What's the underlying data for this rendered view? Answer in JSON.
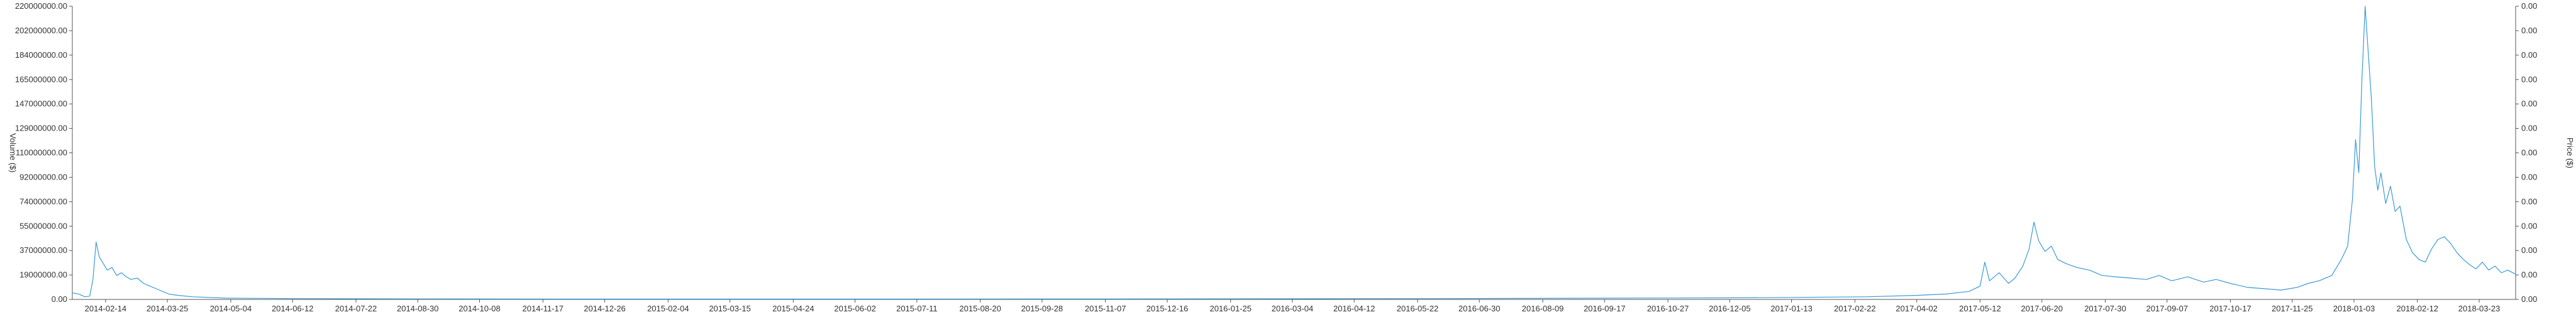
{
  "chart_data": {
    "type": "line",
    "title": "",
    "xlabel": "",
    "ylabel_left": "Volume ($)",
    "ylabel_right": "Price ($)",
    "x_ticks": [
      "2014-02-14",
      "2014-03-25",
      "2014-05-04",
      "2014-06-12",
      "2014-07-22",
      "2014-08-30",
      "2014-10-08",
      "2014-11-17",
      "2014-12-26",
      "2015-02-04",
      "2015-03-15",
      "2015-04-24",
      "2015-06-02",
      "2015-07-11",
      "2015-08-20",
      "2015-09-28",
      "2015-11-07",
      "2015-12-16",
      "2016-01-25",
      "2016-03-04",
      "2016-04-12",
      "2016-05-22",
      "2016-06-30",
      "2016-08-09",
      "2016-09-17",
      "2016-10-27",
      "2016-12-05",
      "2017-01-13",
      "2017-02-22",
      "2017-04-02",
      "2017-05-12",
      "2017-06-20",
      "2017-07-30",
      "2017-09-07",
      "2017-10-17",
      "2017-11-25",
      "2018-01-03",
      "2018-02-12",
      "2018-03-23"
    ],
    "x_range": [
      "2014-01-24",
      "2018-04-15"
    ],
    "y_left_ticks": [
      "0.00",
      "19000000.00",
      "37000000.00",
      "55000000.00",
      "74000000.00",
      "92000000.00",
      "110000000.00",
      "129000000.00",
      "147000000.00",
      "165000000.00",
      "184000000.00",
      "202000000.00",
      "220000000.00"
    ],
    "y_left_range": [
      0,
      220000000
    ],
    "y_right_ticks": [
      "0.00",
      "0.00",
      "0.00",
      "0.00",
      "0.00",
      "0.00",
      "0.00",
      "0.00",
      "0.00",
      "0.00",
      "0.00",
      "0.00",
      "0.00"
    ],
    "grid": false,
    "legend": "none",
    "series_color": "#3a9ad9",
    "series": [
      {
        "points": [
          [
            "2014-01-24",
            5000000
          ],
          [
            "2014-01-28",
            4000000
          ],
          [
            "2014-02-01",
            2000000
          ],
          [
            "2014-02-04",
            2500000
          ],
          [
            "2014-02-06",
            15000000
          ],
          [
            "2014-02-08",
            43000000
          ],
          [
            "2014-02-10",
            32000000
          ],
          [
            "2014-02-12",
            28000000
          ],
          [
            "2014-02-15",
            22000000
          ],
          [
            "2014-02-18",
            24000000
          ],
          [
            "2014-02-21",
            18000000
          ],
          [
            "2014-02-24",
            20000000
          ],
          [
            "2014-02-27",
            17000000
          ],
          [
            "2014-03-02",
            15000000
          ],
          [
            "2014-03-06",
            16000000
          ],
          [
            "2014-03-10",
            12000000
          ],
          [
            "2014-03-14",
            10000000
          ],
          [
            "2014-03-18",
            8000000
          ],
          [
            "2014-03-22",
            6000000
          ],
          [
            "2014-03-26",
            4000000
          ],
          [
            "2014-04-01",
            3000000
          ],
          [
            "2014-04-10",
            2000000
          ],
          [
            "2014-05-01",
            1000000
          ],
          [
            "2014-06-15",
            600000
          ],
          [
            "2014-09-01",
            400000
          ],
          [
            "2015-01-01",
            300000
          ],
          [
            "2015-06-01",
            300000
          ],
          [
            "2015-12-01",
            400000
          ],
          [
            "2016-06-01",
            600000
          ],
          [
            "2016-12-01",
            1200000
          ],
          [
            "2017-01-15",
            1500000
          ],
          [
            "2017-03-01",
            2000000
          ],
          [
            "2017-04-01",
            3000000
          ],
          [
            "2017-04-20",
            4000000
          ],
          [
            "2017-05-05",
            6000000
          ],
          [
            "2017-05-12",
            10000000
          ],
          [
            "2017-05-15",
            28000000
          ],
          [
            "2017-05-18",
            14000000
          ],
          [
            "2017-05-24",
            20000000
          ],
          [
            "2017-05-30",
            12000000
          ],
          [
            "2017-06-03",
            16000000
          ],
          [
            "2017-06-08",
            25000000
          ],
          [
            "2017-06-12",
            38000000
          ],
          [
            "2017-06-15",
            58000000
          ],
          [
            "2017-06-18",
            44000000
          ],
          [
            "2017-06-22",
            36000000
          ],
          [
            "2017-06-26",
            40000000
          ],
          [
            "2017-06-30",
            30000000
          ],
          [
            "2017-07-05",
            27000000
          ],
          [
            "2017-07-12",
            24000000
          ],
          [
            "2017-07-20",
            22000000
          ],
          [
            "2017-07-28",
            18000000
          ],
          [
            "2017-08-05",
            17000000
          ],
          [
            "2017-08-15",
            16000000
          ],
          [
            "2017-08-25",
            15000000
          ],
          [
            "2017-09-02",
            18000000
          ],
          [
            "2017-09-10",
            14000000
          ],
          [
            "2017-09-20",
            17000000
          ],
          [
            "2017-09-30",
            13000000
          ],
          [
            "2017-10-08",
            15000000
          ],
          [
            "2017-10-17",
            12000000
          ],
          [
            "2017-10-28",
            9000000
          ],
          [
            "2017-11-08",
            8000000
          ],
          [
            "2017-11-18",
            7000000
          ],
          [
            "2017-11-28",
            9000000
          ],
          [
            "2017-12-05",
            12000000
          ],
          [
            "2017-12-12",
            14000000
          ],
          [
            "2017-12-20",
            18000000
          ],
          [
            "2017-12-26",
            30000000
          ],
          [
            "2017-12-30",
            40000000
          ],
          [
            "2018-01-02",
            75000000
          ],
          [
            "2018-01-04",
            120000000
          ],
          [
            "2018-01-06",
            95000000
          ],
          [
            "2018-01-08",
            165000000
          ],
          [
            "2018-01-10",
            220000000
          ],
          [
            "2018-01-12",
            185000000
          ],
          [
            "2018-01-14",
            150000000
          ],
          [
            "2018-01-16",
            100000000
          ],
          [
            "2018-01-18",
            82000000
          ],
          [
            "2018-01-20",
            95000000
          ],
          [
            "2018-01-23",
            72000000
          ],
          [
            "2018-01-26",
            85000000
          ],
          [
            "2018-01-29",
            66000000
          ],
          [
            "2018-02-01",
            70000000
          ],
          [
            "2018-02-05",
            45000000
          ],
          [
            "2018-02-09",
            35000000
          ],
          [
            "2018-02-13",
            30000000
          ],
          [
            "2018-02-17",
            28000000
          ],
          [
            "2018-02-21",
            38000000
          ],
          [
            "2018-02-25",
            45000000
          ],
          [
            "2018-03-01",
            47000000
          ],
          [
            "2018-03-05",
            42000000
          ],
          [
            "2018-03-09",
            35000000
          ],
          [
            "2018-03-13",
            30000000
          ],
          [
            "2018-03-17",
            26000000
          ],
          [
            "2018-03-21",
            23000000
          ],
          [
            "2018-03-25",
            28000000
          ],
          [
            "2018-03-29",
            22000000
          ],
          [
            "2018-04-02",
            25000000
          ],
          [
            "2018-04-06",
            20000000
          ],
          [
            "2018-04-10",
            22000000
          ],
          [
            "2018-04-15",
            19000000
          ]
        ]
      }
    ]
  }
}
